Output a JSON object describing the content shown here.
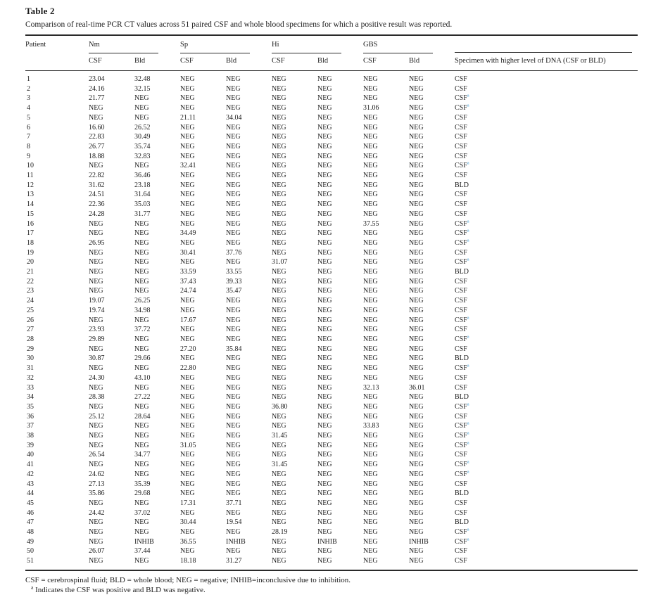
{
  "title": "Table 2",
  "caption": "Comparison of real-time PCR CT values across 51 paired CSF and whole blood specimens for which a positive result was reported.",
  "colors": {
    "footnote_marker": "#4BA6DB",
    "text": "#1c1c1c",
    "rule": "#2a2a2a"
  },
  "table": {
    "header": {
      "patient": "Patient",
      "groups": [
        "Nm",
        "Sp",
        "Hi",
        "GBS"
      ],
      "sub": [
        "CSF",
        "Bld"
      ],
      "last": "Specimen with higher level of DNA (CSF or BLD)"
    },
    "rows": [
      {
        "patient": "1",
        "values": [
          "23.04",
          "32.48",
          "NEG",
          "NEG",
          "NEG",
          "NEG",
          "NEG",
          "NEG"
        ],
        "higher": "CSF",
        "footnote": false
      },
      {
        "patient": "2",
        "values": [
          "24.16",
          "32.15",
          "NEG",
          "NEG",
          "NEG",
          "NEG",
          "NEG",
          "NEG"
        ],
        "higher": "CSF",
        "footnote": false
      },
      {
        "patient": "3",
        "values": [
          "21.77",
          "NEG",
          "NEG",
          "NEG",
          "NEG",
          "NEG",
          "NEG",
          "NEG"
        ],
        "higher": "CSF",
        "footnote": true
      },
      {
        "patient": "4",
        "values": [
          "NEG",
          "NEG",
          "NEG",
          "NEG",
          "NEG",
          "NEG",
          "31.06",
          "NEG"
        ],
        "higher": "CSF",
        "footnote": true
      },
      {
        "patient": "5",
        "values": [
          "NEG",
          "NEG",
          "21.11",
          "34.04",
          "NEG",
          "NEG",
          "NEG",
          "NEG"
        ],
        "higher": "CSF",
        "footnote": false
      },
      {
        "patient": "6",
        "values": [
          "16.60",
          "26.52",
          "NEG",
          "NEG",
          "NEG",
          "NEG",
          "NEG",
          "NEG"
        ],
        "higher": "CSF",
        "footnote": false
      },
      {
        "patient": "7",
        "values": [
          "22.83",
          "30.49",
          "NEG",
          "NEG",
          "NEG",
          "NEG",
          "NEG",
          "NEG"
        ],
        "higher": "CSF",
        "footnote": false
      },
      {
        "patient": "8",
        "values": [
          "26.77",
          "35.74",
          "NEG",
          "NEG",
          "NEG",
          "NEG",
          "NEG",
          "NEG"
        ],
        "higher": "CSF",
        "footnote": false
      },
      {
        "patient": "9",
        "values": [
          "18.88",
          "32.83",
          "NEG",
          "NEG",
          "NEG",
          "NEG",
          "NEG",
          "NEG"
        ],
        "higher": "CSF",
        "footnote": false
      },
      {
        "patient": "10",
        "values": [
          "NEG",
          "NEG",
          "32.41",
          "NEG",
          "NEG",
          "NEG",
          "NEG",
          "NEG"
        ],
        "higher": "CSF",
        "footnote": true
      },
      {
        "patient": "11",
        "values": [
          "22.82",
          "36.46",
          "NEG",
          "NEG",
          "NEG",
          "NEG",
          "NEG",
          "NEG"
        ],
        "higher": "CSF",
        "footnote": false
      },
      {
        "patient": "12",
        "values": [
          "31.62",
          "23.18",
          "NEG",
          "NEG",
          "NEG",
          "NEG",
          "NEG",
          "NEG"
        ],
        "higher": "BLD",
        "footnote": false
      },
      {
        "patient": "13",
        "values": [
          "24.51",
          "31.64",
          "NEG",
          "NEG",
          "NEG",
          "NEG",
          "NEG",
          "NEG"
        ],
        "higher": "CSF",
        "footnote": false
      },
      {
        "patient": "14",
        "values": [
          "22.36",
          "35.03",
          "NEG",
          "NEG",
          "NEG",
          "NEG",
          "NEG",
          "NEG"
        ],
        "higher": "CSF",
        "footnote": false
      },
      {
        "patient": "15",
        "values": [
          "24.28",
          "31.77",
          "NEG",
          "NEG",
          "NEG",
          "NEG",
          "NEG",
          "NEG"
        ],
        "higher": "CSF",
        "footnote": false
      },
      {
        "patient": "16",
        "values": [
          "NEG",
          "NEG",
          "NEG",
          "NEG",
          "NEG",
          "NEG",
          "37.55",
          "NEG"
        ],
        "higher": "CSF",
        "footnote": true
      },
      {
        "patient": "17",
        "values": [
          "NEG",
          "NEG",
          "34.49",
          "NEG",
          "NEG",
          "NEG",
          "NEG",
          "NEG"
        ],
        "higher": "CSF",
        "footnote": true
      },
      {
        "patient": "18",
        "values": [
          "26.95",
          "NEG",
          "NEG",
          "NEG",
          "NEG",
          "NEG",
          "NEG",
          "NEG"
        ],
        "higher": "CSF",
        "footnote": true
      },
      {
        "patient": "19",
        "values": [
          "NEG",
          "NEG",
          "30.41",
          "37.76",
          "NEG",
          "NEG",
          "NEG",
          "NEG"
        ],
        "higher": "CSF",
        "footnote": false
      },
      {
        "patient": "20",
        "values": [
          "NEG",
          "NEG",
          "NEG",
          "NEG",
          "31.07",
          "NEG",
          "NEG",
          "NEG"
        ],
        "higher": "CSF",
        "footnote": true
      },
      {
        "patient": "21",
        "values": [
          "NEG",
          "NEG",
          "33.59",
          "33.55",
          "NEG",
          "NEG",
          "NEG",
          "NEG"
        ],
        "higher": "BLD",
        "footnote": false
      },
      {
        "patient": "22",
        "values": [
          "NEG",
          "NEG",
          "37.43",
          "39.33",
          "NEG",
          "NEG",
          "NEG",
          "NEG"
        ],
        "higher": "CSF",
        "footnote": false
      },
      {
        "patient": "23",
        "values": [
          "NEG",
          "NEG",
          "24.74",
          "35.47",
          "NEG",
          "NEG",
          "NEG",
          "NEG"
        ],
        "higher": "CSF",
        "footnote": false
      },
      {
        "patient": "24",
        "values": [
          "19.07",
          "26.25",
          "NEG",
          "NEG",
          "NEG",
          "NEG",
          "NEG",
          "NEG"
        ],
        "higher": "CSF",
        "footnote": false
      },
      {
        "patient": "25",
        "values": [
          "19.74",
          "34.98",
          "NEG",
          "NEG",
          "NEG",
          "NEG",
          "NEG",
          "NEG"
        ],
        "higher": "CSF",
        "footnote": false
      },
      {
        "patient": "26",
        "values": [
          "NEG",
          "NEG",
          "17.67",
          "NEG",
          "NEG",
          "NEG",
          "NEG",
          "NEG"
        ],
        "higher": "CSF",
        "footnote": true
      },
      {
        "patient": "27",
        "values": [
          "23.93",
          "37.72",
          "NEG",
          "NEG",
          "NEG",
          "NEG",
          "NEG",
          "NEG"
        ],
        "higher": "CSF",
        "footnote": false
      },
      {
        "patient": "28",
        "values": [
          "29.89",
          "NEG",
          "NEG",
          "NEG",
          "NEG",
          "NEG",
          "NEG",
          "NEG"
        ],
        "higher": "CSF",
        "footnote": true
      },
      {
        "patient": "29",
        "values": [
          "NEG",
          "NEG",
          "27.20",
          "35.84",
          "NEG",
          "NEG",
          "NEG",
          "NEG"
        ],
        "higher": "CSF",
        "footnote": false
      },
      {
        "patient": "30",
        "values": [
          "30.87",
          "29.66",
          "NEG",
          "NEG",
          "NEG",
          "NEG",
          "NEG",
          "NEG"
        ],
        "higher": "BLD",
        "footnote": false
      },
      {
        "patient": "31",
        "values": [
          "NEG",
          "NEG",
          "22.80",
          "NEG",
          "NEG",
          "NEG",
          "NEG",
          "NEG"
        ],
        "higher": "CSF",
        "footnote": true
      },
      {
        "patient": "32",
        "values": [
          "24.30",
          "43.10",
          "NEG",
          "NEG",
          "NEG",
          "NEG",
          "NEG",
          "NEG"
        ],
        "higher": "CSF",
        "footnote": false
      },
      {
        "patient": "33",
        "values": [
          "NEG",
          "NEG",
          "NEG",
          "NEG",
          "NEG",
          "NEG",
          "32.13",
          "36.01"
        ],
        "higher": "CSF",
        "footnote": false
      },
      {
        "patient": "34",
        "values": [
          "28.38",
          "27.22",
          "NEG",
          "NEG",
          "NEG",
          "NEG",
          "NEG",
          "NEG"
        ],
        "higher": "BLD",
        "footnote": false
      },
      {
        "patient": "35",
        "values": [
          "NEG",
          "NEG",
          "NEG",
          "NEG",
          "36.80",
          "NEG",
          "NEG",
          "NEG"
        ],
        "higher": "CSF",
        "footnote": true
      },
      {
        "patient": "36",
        "values": [
          "25.12",
          "28.64",
          "NEG",
          "NEG",
          "NEG",
          "NEG",
          "NEG",
          "NEG"
        ],
        "higher": "CSF",
        "footnote": false
      },
      {
        "patient": "37",
        "values": [
          "NEG",
          "NEG",
          "NEG",
          "NEG",
          "NEG",
          "NEG",
          "33.83",
          "NEG"
        ],
        "higher": "CSF",
        "footnote": true
      },
      {
        "patient": "38",
        "values": [
          "NEG",
          "NEG",
          "NEG",
          "NEG",
          "31.45",
          "NEG",
          "NEG",
          "NEG"
        ],
        "higher": "CSF",
        "footnote": true
      },
      {
        "patient": "39",
        "values": [
          "NEG",
          "NEG",
          "31.05",
          "NEG",
          "NEG",
          "NEG",
          "NEG",
          "NEG"
        ],
        "higher": "CSF",
        "footnote": true
      },
      {
        "patient": "40",
        "values": [
          "26.54",
          "34.77",
          "NEG",
          "NEG",
          "NEG",
          "NEG",
          "NEG",
          "NEG"
        ],
        "higher": "CSF",
        "footnote": false
      },
      {
        "patient": "41",
        "values": [
          "NEG",
          "NEG",
          "NEG",
          "NEG",
          "31.45",
          "NEG",
          "NEG",
          "NEG"
        ],
        "higher": "CSF",
        "footnote": true
      },
      {
        "patient": "42",
        "values": [
          "24.62",
          "NEG",
          "NEG",
          "NEG",
          "NEG",
          "NEG",
          "NEG",
          "NEG"
        ],
        "higher": "CSF",
        "footnote": true
      },
      {
        "patient": "43",
        "values": [
          "27.13",
          "35.39",
          "NEG",
          "NEG",
          "NEG",
          "NEG",
          "NEG",
          "NEG"
        ],
        "higher": "CSF",
        "footnote": false
      },
      {
        "patient": "44",
        "values": [
          "35.86",
          "29.68",
          "NEG",
          "NEG",
          "NEG",
          "NEG",
          "NEG",
          "NEG"
        ],
        "higher": "BLD",
        "footnote": false
      },
      {
        "patient": "45",
        "values": [
          "NEG",
          "NEG",
          "17.31",
          "37.71",
          "NEG",
          "NEG",
          "NEG",
          "NEG"
        ],
        "higher": "CSF",
        "footnote": false
      },
      {
        "patient": "46",
        "values": [
          "24.42",
          "37.02",
          "NEG",
          "NEG",
          "NEG",
          "NEG",
          "NEG",
          "NEG"
        ],
        "higher": "CSF",
        "footnote": false
      },
      {
        "patient": "47",
        "values": [
          "NEG",
          "NEG",
          "30.44",
          "19.54",
          "NEG",
          "NEG",
          "NEG",
          "NEG"
        ],
        "higher": "BLD",
        "footnote": false
      },
      {
        "patient": "48",
        "values": [
          "NEG",
          "NEG",
          "NEG",
          "NEG",
          "28.19",
          "NEG",
          "NEG",
          "NEG"
        ],
        "higher": "CSF",
        "footnote": true
      },
      {
        "patient": "49",
        "values": [
          "NEG",
          "INHIB",
          "36.55",
          "INHIB",
          "NEG",
          "INHIB",
          "NEG",
          "INHIB"
        ],
        "higher": "CSF",
        "footnote": true
      },
      {
        "patient": "50",
        "values": [
          "26.07",
          "37.44",
          "NEG",
          "NEG",
          "NEG",
          "NEG",
          "NEG",
          "NEG"
        ],
        "higher": "CSF",
        "footnote": false
      },
      {
        "patient": "51",
        "values": [
          "NEG",
          "NEG",
          "18.18",
          "31.27",
          "NEG",
          "NEG",
          "NEG",
          "NEG"
        ],
        "higher": "CSF",
        "footnote": false
      }
    ]
  },
  "footnotes": {
    "abbreviations": "CSF = cerebrospinal fluid; BLD = whole blood; NEG = negative; INHIB=inconclusive due to inhibition.",
    "a_marker": "a",
    "a_text": "Indicates the CSF was positive and BLD was negative."
  }
}
